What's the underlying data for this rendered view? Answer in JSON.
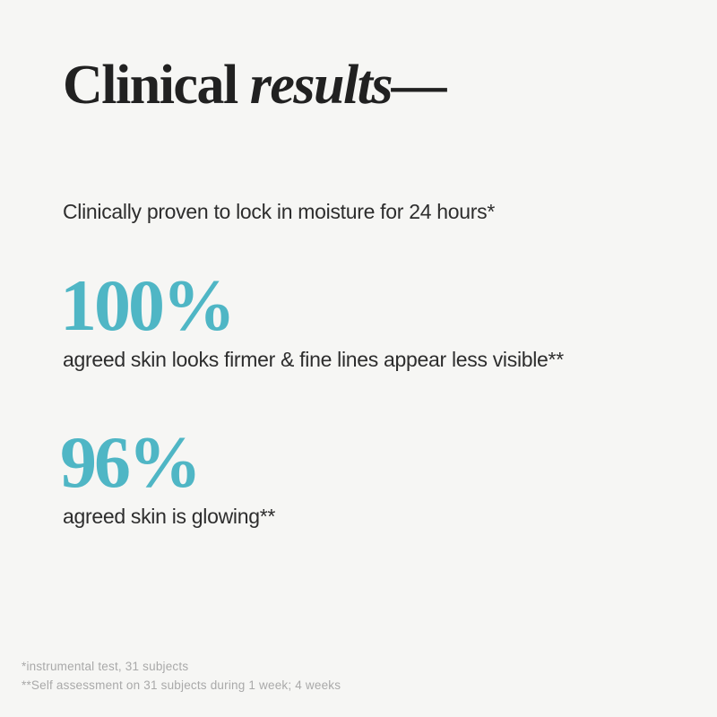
{
  "title": {
    "regular": "Clinical ",
    "italic": "results—"
  },
  "claim": "Clinically proven to lock in moisture for 24 hours*",
  "stats": [
    {
      "value": "100%",
      "description": "agreed skin looks firmer & fine lines appear less visible**"
    },
    {
      "value": "96%",
      "description": "agreed skin is glowing**"
    }
  ],
  "footnotes": [
    "*instrumental test, 31 subjects",
    "**Self assessment on 31 subjects during 1 week; 4 weeks"
  ],
  "colors": {
    "bg": "#f6f6f4",
    "accent": "#4fb6c5",
    "heading": "#212121",
    "body": "#2d2d2d",
    "footnote": "#a9a9a9"
  }
}
